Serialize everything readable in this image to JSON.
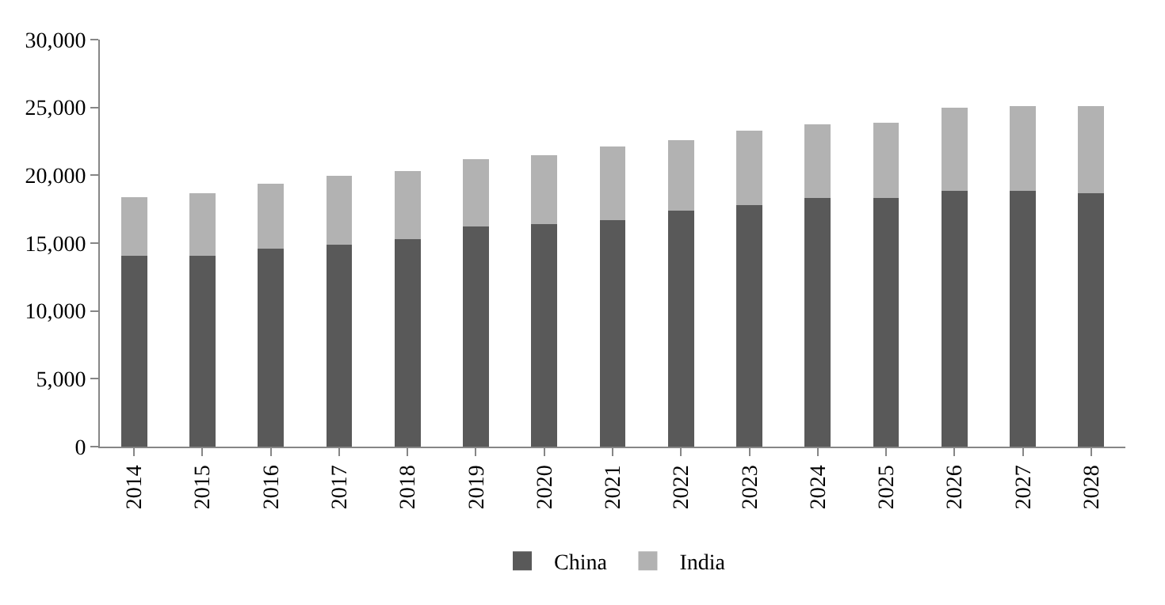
{
  "chart_data": {
    "type": "bar",
    "stacked": true,
    "categories": [
      "2014",
      "2015",
      "2016",
      "2017",
      "2018",
      "2019",
      "2020",
      "2021",
      "2022",
      "2023",
      "2024",
      "2025",
      "2026",
      "2027",
      "2028"
    ],
    "series": [
      {
        "name": "China",
        "color": "#595959",
        "values": [
          14050,
          14050,
          14600,
          14900,
          15300,
          16200,
          16400,
          16700,
          17400,
          17800,
          18300,
          18300,
          18850,
          18850,
          18700
        ]
      },
      {
        "name": "India",
        "color": "#b2b2b2",
        "values": [
          4350,
          4650,
          4800,
          5050,
          5000,
          5000,
          5100,
          5400,
          5200,
          5500,
          5450,
          5600,
          6150,
          6250,
          6400
        ]
      }
    ],
    "ylim": [
      0,
      30000
    ],
    "yticks": [
      {
        "value": 0,
        "label": "0"
      },
      {
        "value": 5000,
        "label": "5,000"
      },
      {
        "value": 10000,
        "label": "10,000"
      },
      {
        "value": 15000,
        "label": "15,000"
      },
      {
        "value": 20000,
        "label": "20,000"
      },
      {
        "value": 25000,
        "label": "25,000"
      },
      {
        "value": 30000,
        "label": "30,000"
      }
    ],
    "grid": false,
    "legend": "bottom"
  }
}
